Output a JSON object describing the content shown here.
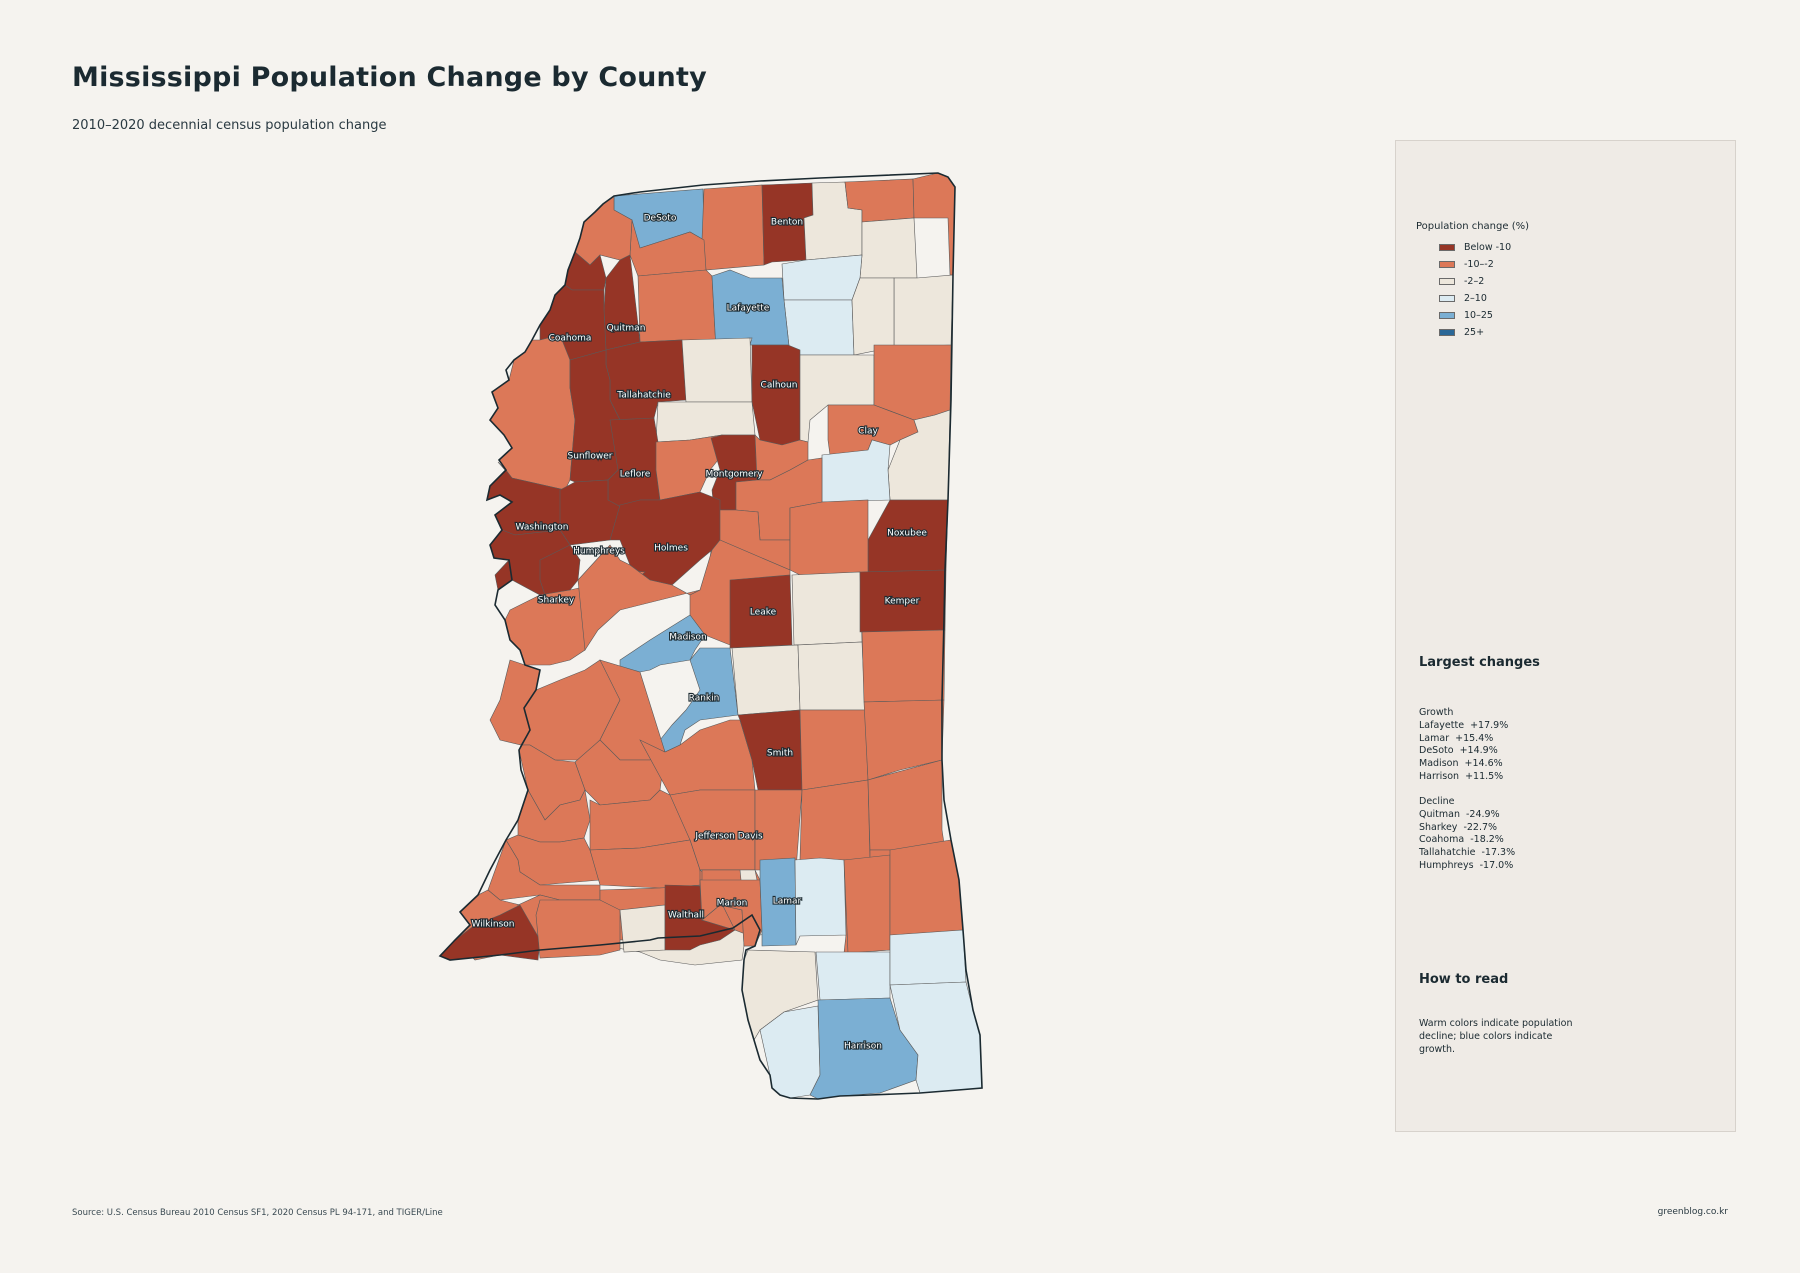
{
  "header": {
    "title": "Mississippi Population Change by County",
    "subtitle": "2010–2020 decennial census population change"
  },
  "colors": {
    "below_-10": "#963526",
    "-10_-2": "#dc7858",
    "-2_2": "#ede7dc",
    "2_10": "#dcebf2",
    "10_25": "#7bafd3",
    "25_plus": "#2a6797"
  },
  "legend": {
    "title": "Population change (%)",
    "items": [
      {
        "label": "Below -10",
        "color": "#963526"
      },
      {
        "label": "-10–-2",
        "color": "#dc7858"
      },
      {
        "label": "-2–2",
        "color": "#ede7dc"
      },
      {
        "label": "2–10",
        "color": "#dcebf2"
      },
      {
        "label": "10–25",
        "color": "#7bafd3"
      },
      {
        "label": "25+",
        "color": "#2a6797"
      }
    ]
  },
  "largest_changes": {
    "title": "Largest changes",
    "growth_heading": "Growth",
    "growth": [
      "Lafayette  +17.9%",
      "Lamar  +15.4%",
      "DeSoto  +14.9%",
      "Madison  +14.6%",
      "Harrison  +11.5%"
    ],
    "decline_heading": "Decline",
    "decline": [
      "Quitman  -24.9%",
      "Sharkey  -22.7%",
      "Coahoma  -18.2%",
      "Tallahatchie  -17.3%",
      "Humphreys  -17.0%"
    ]
  },
  "how_to_read": {
    "title": "How to read",
    "text": "Warm colors indicate population decline; blue colors indicate growth."
  },
  "county_labels": [
    "DeSoto",
    "Benton",
    "Lafayette",
    "Coahoma",
    "Quitman",
    "Tallahatchie",
    "Calhoun",
    "Clay",
    "Sunflower",
    "Leflore",
    "Montgomery",
    "Washington",
    "Humphreys",
    "Holmes",
    "Noxubee",
    "Sharkey",
    "Leake",
    "Kemper",
    "Madison",
    "Rankin",
    "Smith",
    "Jefferson Davis",
    "Marion",
    "Lamar",
    "Walthall",
    "Wilkinson",
    "Harrison"
  ],
  "footer": {
    "source": "Source: U.S. Census Bureau 2010 Census SF1, 2020 Census PL 94-171, and TIGER/Line",
    "credit": "greenblog.co.kr"
  }
}
